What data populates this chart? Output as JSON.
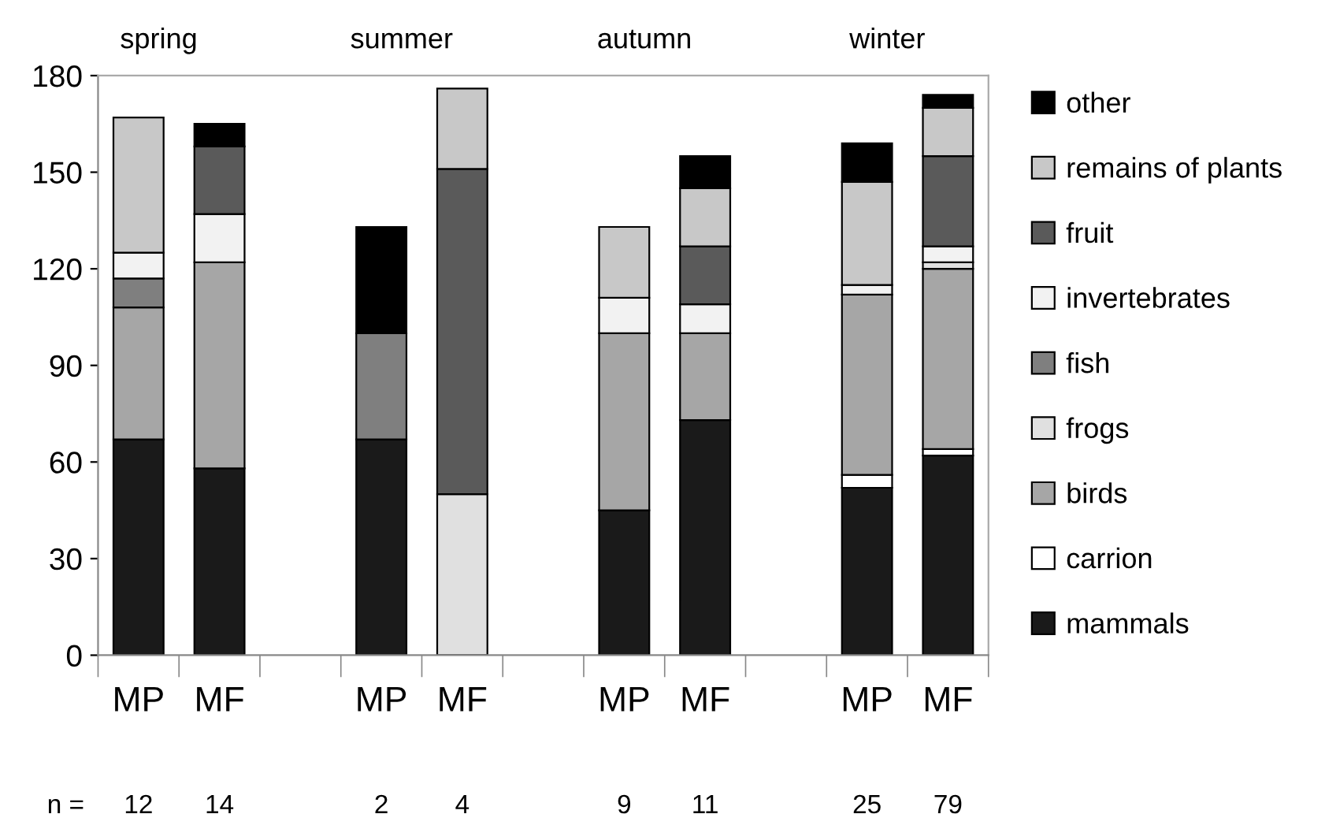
{
  "chart_data": {
    "type": "bar",
    "stacked": true,
    "categories": [
      "MP",
      "MF",
      null,
      "MP",
      "MF",
      null,
      "MP",
      "MF",
      null,
      "MP",
      "MF"
    ],
    "series": [
      {
        "name": "mammals",
        "color": "#1a1a1a",
        "values": [
          67,
          58,
          null,
          67,
          null,
          null,
          45,
          73,
          null,
          52,
          62
        ]
      },
      {
        "name": "carrion",
        "color": "#ffffff",
        "values": [
          null,
          null,
          null,
          null,
          null,
          null,
          null,
          null,
          null,
          4,
          2
        ]
      },
      {
        "name": "birds",
        "color": "#a6a6a6",
        "values": [
          41,
          64,
          null,
          null,
          null,
          null,
          55,
          27,
          null,
          56,
          56
        ]
      },
      {
        "name": "frogs",
        "color": "#e0e0e0",
        "values": [
          null,
          null,
          null,
          null,
          50,
          null,
          null,
          null,
          null,
          null,
          2
        ]
      },
      {
        "name": "fish",
        "color": "#7f7f7f",
        "values": [
          9,
          null,
          null,
          33,
          null,
          null,
          null,
          null,
          null,
          null,
          null
        ]
      },
      {
        "name": "invertebrates",
        "color": "#f2f2f2",
        "values": [
          8,
          15,
          null,
          null,
          null,
          null,
          11,
          9,
          null,
          3,
          5
        ]
      },
      {
        "name": "fruit",
        "color": "#5a5a5a",
        "values": [
          null,
          21,
          null,
          null,
          101,
          null,
          null,
          18,
          null,
          null,
          28
        ]
      },
      {
        "name": "remains of plants",
        "color": "#c8c8c8",
        "values": [
          42,
          null,
          null,
          null,
          25,
          null,
          22,
          18,
          null,
          32,
          15
        ]
      },
      {
        "name": "other",
        "color": "#000000",
        "values": [
          null,
          7,
          null,
          33,
          null,
          null,
          null,
          10,
          null,
          12,
          4
        ]
      }
    ],
    "ylim": [
      0,
      180
    ],
    "yticks": [
      0,
      30,
      60,
      90,
      120,
      150,
      180
    ],
    "grid": false,
    "legend": "right",
    "annotations": [
      "spring",
      "summer",
      "autumn",
      "winter",
      "n =",
      "12",
      "14",
      "2",
      "4",
      "9",
      "11",
      "25",
      "79"
    ]
  }
}
